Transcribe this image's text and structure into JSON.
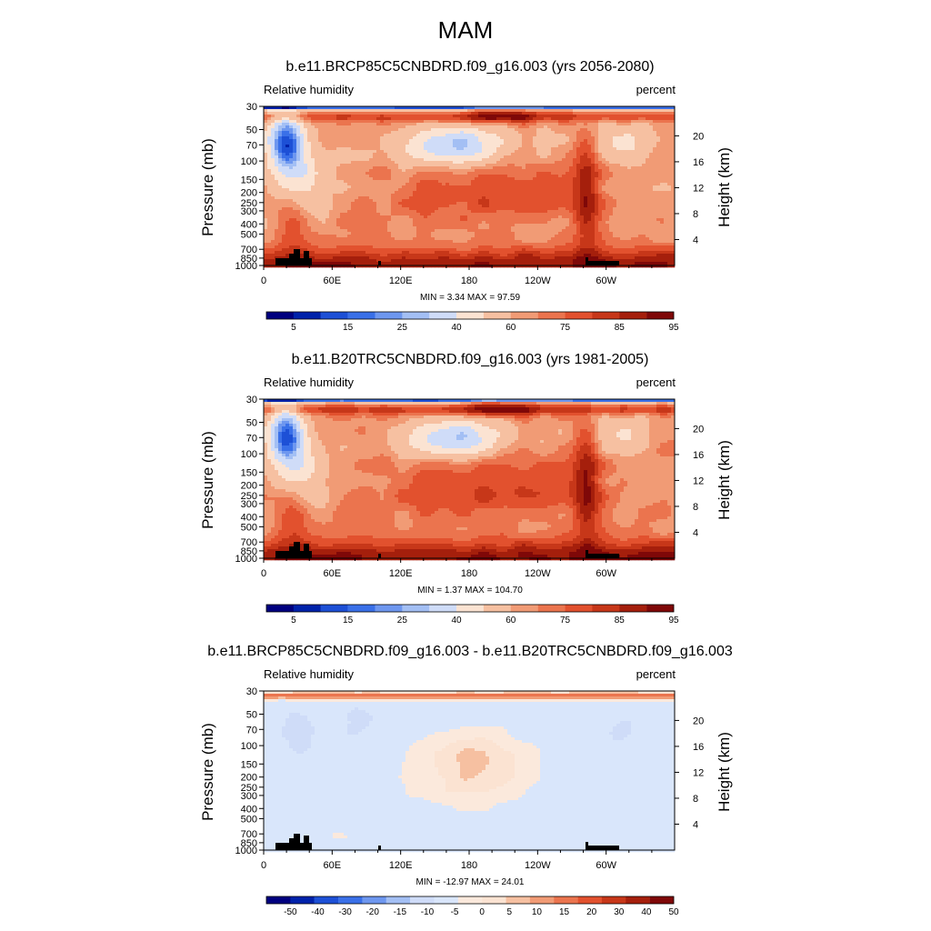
{
  "figure": {
    "title": "MAM"
  },
  "colors": {
    "abs_scale": [
      "#00007f",
      "#0022aa",
      "#1d50d6",
      "#3a70e8",
      "#6e97ef",
      "#a3bff4",
      "#cfdcf8",
      "#fbe3d2",
      "#f6c0a1",
      "#f19b75",
      "#eb744e",
      "#e2512e",
      "#c73719",
      "#a51f0c",
      "#7f0808"
    ],
    "diff_scale": [
      "#00007f",
      "#0022aa",
      "#1d50d6",
      "#3a70e8",
      "#6e97ef",
      "#a3bff4",
      "#cfdcf8",
      "#d9e6fb",
      "#fbe9dc",
      "#fbe3d2",
      "#f6c0a1",
      "#f19b75",
      "#eb744e",
      "#e2512e",
      "#c73719",
      "#a51f0c",
      "#7f0808"
    ],
    "land": "#000000"
  },
  "chart_data": [
    {
      "type": "heatmap",
      "title": "b.e11.BRCP85C5CNBDRD.f09_g16.003 (yrs 2056-2080)",
      "left_label": "Relative humidity",
      "right_label": "percent",
      "ylabel": "Pressure (mb)",
      "ylabel_right": "Height (km)",
      "xticks": [
        "0",
        "60E",
        "120E",
        "180",
        "120W",
        "60W"
      ],
      "xtick_lon": [
        0,
        60,
        120,
        180,
        240,
        300
      ],
      "xlim": [
        0,
        360
      ],
      "yticks": [
        "30",
        "50",
        "70",
        "100",
        "150",
        "200",
        "250",
        "300",
        "400",
        "500",
        "700",
        "850",
        "1000"
      ],
      "ytick_p": [
        30,
        50,
        70,
        100,
        150,
        200,
        250,
        300,
        400,
        500,
        700,
        850,
        1000
      ],
      "yticks_right": [
        "20",
        "16",
        "12",
        "8",
        "4"
      ],
      "height_km": [
        20,
        16,
        12,
        8,
        4
      ],
      "ylim": [
        1000,
        30
      ],
      "stats": "MIN =   3.34  MAX =  97.59",
      "colorbar_labels": [
        "5",
        "15",
        "25",
        "40",
        "60",
        "75",
        "85",
        "95"
      ],
      "levels": [
        5,
        10,
        15,
        20,
        25,
        30,
        40,
        50,
        60,
        65,
        70,
        75,
        80,
        85,
        90,
        95
      ],
      "min": 3.34,
      "max": 97.59
    },
    {
      "type": "heatmap",
      "title": "b.e11.B20TRC5CNBDRD.f09_g16.003 (yrs 1981-2005)",
      "left_label": "Relative humidity",
      "right_label": "percent",
      "ylabel": "Pressure (mb)",
      "ylabel_right": "Height (km)",
      "xticks": [
        "0",
        "60E",
        "120E",
        "180",
        "120W",
        "60W"
      ],
      "xtick_lon": [
        0,
        60,
        120,
        180,
        240,
        300
      ],
      "xlim": [
        0,
        360
      ],
      "yticks": [
        "30",
        "50",
        "70",
        "100",
        "150",
        "200",
        "250",
        "300",
        "400",
        "500",
        "700",
        "850",
        "1000"
      ],
      "ytick_p": [
        30,
        50,
        70,
        100,
        150,
        200,
        250,
        300,
        400,
        500,
        700,
        850,
        1000
      ],
      "yticks_right": [
        "20",
        "16",
        "12",
        "8",
        "4"
      ],
      "height_km": [
        20,
        16,
        12,
        8,
        4
      ],
      "ylim": [
        1000,
        30
      ],
      "stats": "MIN =   1.37  MAX = 104.70",
      "colorbar_labels": [
        "5",
        "15",
        "25",
        "40",
        "60",
        "75",
        "85",
        "95"
      ],
      "levels": [
        5,
        10,
        15,
        20,
        25,
        30,
        40,
        50,
        60,
        65,
        70,
        75,
        80,
        85,
        90,
        95
      ],
      "min": 1.37,
      "max": 104.7
    },
    {
      "type": "heatmap",
      "title": "b.e11.BRCP85C5CNBDRD.f09_g16.003 - b.e11.B20TRC5CNBDRD.f09_g16.003",
      "left_label": "Relative humidity",
      "right_label": "percent",
      "ylabel": "Pressure (mb)",
      "ylabel_right": "Height (km)",
      "xticks": [
        "0",
        "60E",
        "120E",
        "180",
        "120W",
        "60W"
      ],
      "xtick_lon": [
        0,
        60,
        120,
        180,
        240,
        300
      ],
      "xlim": [
        0,
        360
      ],
      "yticks": [
        "30",
        "50",
        "70",
        "100",
        "150",
        "200",
        "250",
        "300",
        "400",
        "500",
        "700",
        "850",
        "1000"
      ],
      "ytick_p": [
        30,
        50,
        70,
        100,
        150,
        200,
        250,
        300,
        400,
        500,
        700,
        850,
        1000
      ],
      "yticks_right": [
        "20",
        "16",
        "12",
        "8",
        "4"
      ],
      "height_km": [
        20,
        16,
        12,
        8,
        4
      ],
      "ylim": [
        1000,
        30
      ],
      "stats": "MIN = -12.97  MAX =  24.01",
      "colorbar_labels": [
        "-50",
        "-40",
        "-30",
        "-20",
        "-15",
        "-10",
        "-5",
        "0",
        "5",
        "10",
        "15",
        "20",
        "30",
        "40",
        "50"
      ],
      "levels": [
        -50,
        -40,
        -30,
        -20,
        -15,
        -10,
        -5,
        0,
        5,
        10,
        15,
        20,
        30,
        40,
        50
      ],
      "min": -12.97,
      "max": 24.01
    }
  ]
}
